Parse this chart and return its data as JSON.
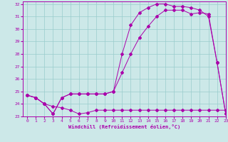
{
  "xlabel": "Windchill (Refroidissement éolien,°C)",
  "ylabel": "",
  "xlim": [
    -0.5,
    23
  ],
  "ylim": [
    23,
    32.2
  ],
  "yticks": [
    23,
    24,
    25,
    26,
    27,
    28,
    29,
    30,
    31,
    32
  ],
  "xticks": [
    0,
    1,
    2,
    3,
    4,
    5,
    6,
    7,
    8,
    9,
    10,
    11,
    12,
    13,
    14,
    15,
    16,
    17,
    18,
    19,
    20,
    21,
    22,
    23
  ],
  "bg_color": "#cce8e8",
  "line_color": "#aa00aa",
  "grid_color": "#99cccc",
  "line1_x": [
    0,
    1,
    2,
    3,
    4,
    5,
    6,
    7,
    8,
    9,
    10,
    11,
    12,
    13,
    14,
    15,
    16,
    17,
    18,
    19,
    20,
    21,
    22,
    23
  ],
  "line1_y": [
    24.7,
    24.5,
    24.0,
    23.2,
    24.5,
    24.8,
    24.8,
    24.8,
    24.8,
    24.8,
    25.0,
    28.0,
    30.3,
    31.3,
    31.7,
    32.0,
    32.0,
    31.8,
    31.8,
    31.7,
    31.5,
    31.0,
    27.3,
    23.2
  ],
  "line2_x": [
    0,
    1,
    2,
    3,
    4,
    5,
    6,
    7,
    8,
    9,
    10,
    11,
    12,
    13,
    14,
    15,
    16,
    17,
    18,
    19,
    20,
    21,
    22,
    23
  ],
  "line2_y": [
    24.7,
    24.5,
    24.0,
    23.2,
    24.5,
    24.8,
    24.8,
    24.8,
    24.8,
    24.8,
    25.0,
    26.5,
    28.0,
    29.3,
    30.2,
    31.0,
    31.5,
    31.5,
    31.5,
    31.2,
    31.3,
    31.2,
    27.3,
    23.2
  ],
  "line3_x": [
    0,
    1,
    2,
    3,
    4,
    5,
    6,
    7,
    8,
    9,
    10,
    11,
    12,
    13,
    14,
    15,
    16,
    17,
    18,
    19,
    20,
    21,
    22,
    23
  ],
  "line3_y": [
    24.7,
    24.5,
    24.0,
    23.8,
    23.7,
    23.5,
    23.2,
    23.3,
    23.5,
    23.5,
    23.5,
    23.5,
    23.5,
    23.5,
    23.5,
    23.5,
    23.5,
    23.5,
    23.5,
    23.5,
    23.5,
    23.5,
    23.5,
    23.5
  ]
}
